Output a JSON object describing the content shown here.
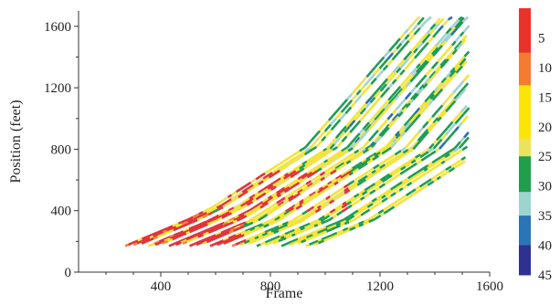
{
  "chart_data": {
    "type": "scatter",
    "title": "",
    "xlabel": "Frame",
    "ylabel": "Position (feet)",
    "xlim": [
      100,
      1600
    ],
    "ylim": [
      0,
      1700
    ],
    "xticks": [
      400,
      800,
      1200,
      1600
    ],
    "yticks": [
      0,
      400,
      800,
      1200,
      1600
    ],
    "x_minor_ticks": [
      200,
      300,
      500,
      600,
      700,
      900,
      1000,
      1100,
      1300,
      1400,
      1500
    ],
    "y_minor_ticks": [
      200,
      600,
      1000,
      1400
    ],
    "grid": false,
    "colorbar": {
      "labels": [
        "5",
        "10",
        "15",
        "20",
        "25",
        "30",
        "35",
        "40",
        "45"
      ],
      "colors": [
        "#e8332b",
        "#e8332b",
        "#f47b30",
        "#fbe40a",
        "#ece35c",
        "#1f9e4c",
        "#9ed4d0",
        "#2b74b6",
        "#2e3192"
      ]
    },
    "colorbar_bands": [
      {
        "from": 0,
        "to": 1.5,
        "color": "#e8332b"
      },
      {
        "from": 1.5,
        "to": 2.6,
        "color": "#f47b30"
      },
      {
        "from": 2.6,
        "to": 4.4,
        "color": "#fbe40a"
      },
      {
        "from": 4.4,
        "to": 5.0,
        "color": "#ece35c"
      },
      {
        "from": 5.0,
        "to": 6.2,
        "color": "#1f9e4c"
      },
      {
        "from": 6.2,
        "to": 7.0,
        "color": "#9ed4d0"
      },
      {
        "from": 7.0,
        "to": 8.0,
        "color": "#2b74b6"
      },
      {
        "from": 8.0,
        "to": 9.0,
        "color": "#2e3192"
      }
    ],
    "series_description": "vehicle trajectories, position vs frame, colored by speed",
    "trajectory_starts": [
      270,
      300,
      330,
      355,
      380,
      405,
      430,
      455,
      480,
      505,
      530,
      555,
      580,
      605,
      630,
      660,
      690,
      720,
      750,
      780,
      810,
      840,
      870,
      900,
      930,
      960
    ]
  }
}
